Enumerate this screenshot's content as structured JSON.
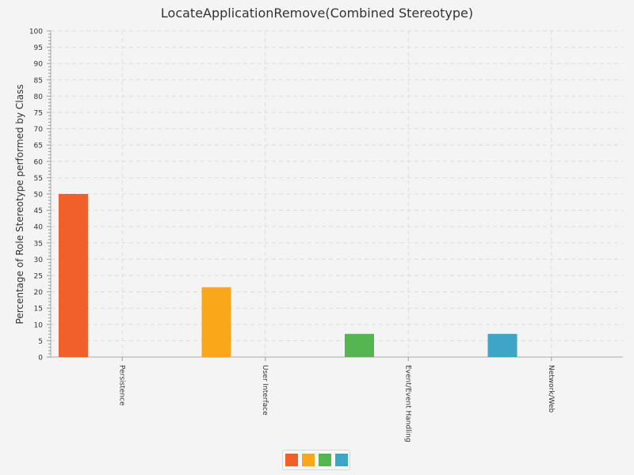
{
  "chart_data": {
    "type": "bar",
    "title": "LocateApplicationRemove(Combined Stereotype)",
    "xlabel": "",
    "ylabel": "Percentage of Role Stereotype performed by Class",
    "ylim": [
      0,
      100
    ],
    "ytick_step": 5,
    "grid": true,
    "legend_position": "bottom-center",
    "categories": [
      "Persistence",
      "User Interface",
      "Event/Event Handling",
      "Network/Web"
    ],
    "values": [
      50,
      21.4,
      7.1,
      7.1
    ],
    "colors": [
      "#f0602b",
      "#fba71b",
      "#55b550",
      "#3ea5c7"
    ]
  }
}
